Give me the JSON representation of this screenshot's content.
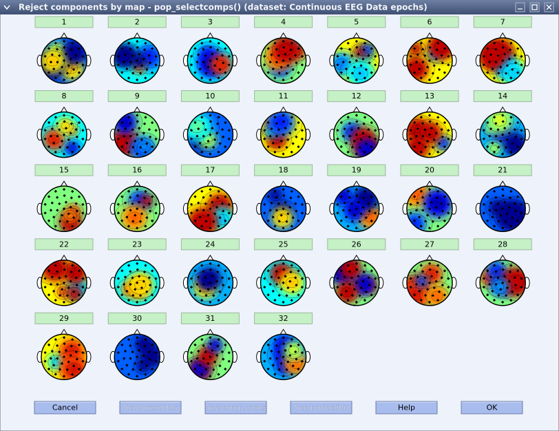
{
  "window": {
    "title": "Reject components by map - pop_selectcomps() (dataset: Continuous EEG Data epochs)",
    "components": [
      "1",
      "2",
      "3",
      "4",
      "5",
      "6",
      "7",
      "8",
      "9",
      "10",
      "11",
      "12",
      "13",
      "14",
      "15",
      "16",
      "17",
      "18",
      "19",
      "20",
      "21",
      "22",
      "23",
      "24",
      "25",
      "26",
      "27",
      "28",
      "29",
      "30",
      "31",
      "32"
    ],
    "buttons": [
      {
        "label": "Cancel",
        "enabled": true
      },
      {
        "label": "Set thresholds",
        "enabled": false
      },
      {
        "label": "See comp. stats",
        "enabled": false
      },
      {
        "label": "See projection",
        "enabled": false
      },
      {
        "label": "Help",
        "enabled": true
      },
      {
        "label": "OK",
        "enabled": true
      }
    ]
  }
}
